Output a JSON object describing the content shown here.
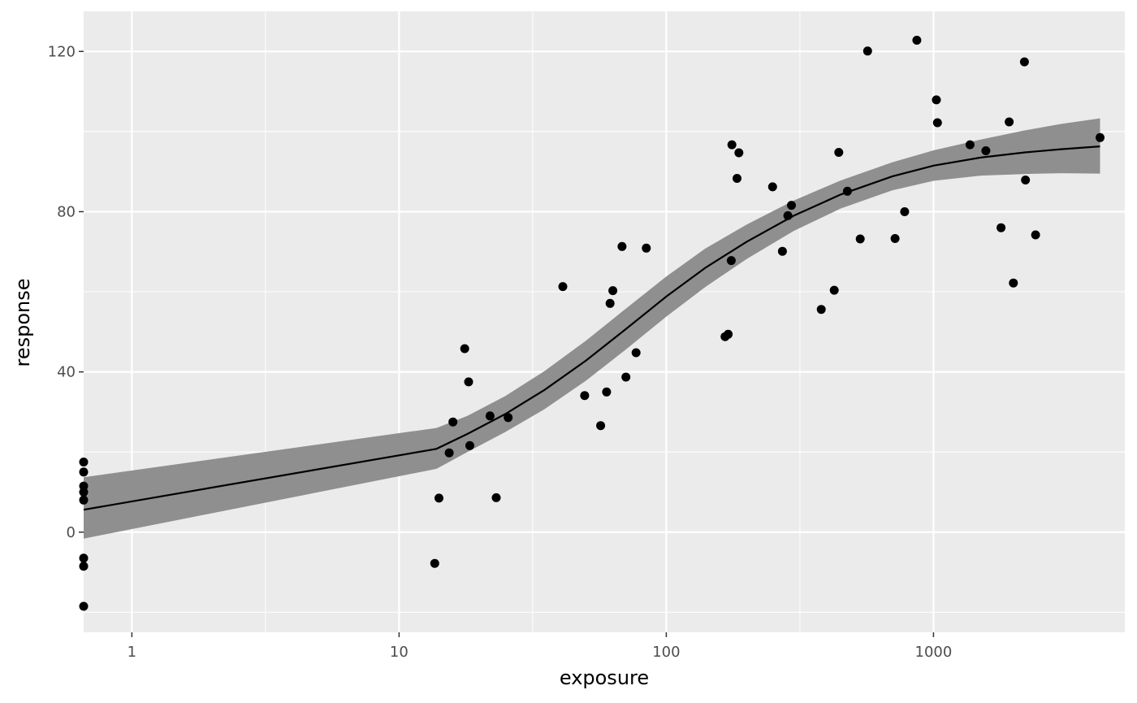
{
  "chart_data": {
    "type": "scatter",
    "title": "",
    "xlabel": "exposure",
    "ylabel": "response",
    "x_scale": "log10",
    "xlim": [
      0.66,
      5200
    ],
    "ylim": [
      -25,
      130
    ],
    "x_ticks": [
      1,
      10,
      100,
      1000
    ],
    "x_tick_labels": [
      "1",
      "10",
      "100",
      "1000"
    ],
    "y_ticks": [
      0,
      40,
      80,
      120
    ],
    "y_tick_labels": [
      "0",
      "40",
      "80",
      "120"
    ],
    "grid": true,
    "panel_background": "#ebebeb",
    "grid_color": "#ffffff",
    "point_color": "#000000",
    "ribbon_color": "#8f8f8f",
    "line_color": "#000000",
    "points": [
      {
        "x": 0.66,
        "y": 17.5
      },
      {
        "x": 0.66,
        "y": 15
      },
      {
        "x": 0.66,
        "y": 11.5
      },
      {
        "x": 0.66,
        "y": 10
      },
      {
        "x": 0.66,
        "y": 8
      },
      {
        "x": 0.66,
        "y": -6.5
      },
      {
        "x": 0.66,
        "y": -8.5
      },
      {
        "x": 0.66,
        "y": -18.5
      },
      {
        "x": 13.6,
        "y": -7.8
      },
      {
        "x": 14.1,
        "y": 8.5
      },
      {
        "x": 15.4,
        "y": 19.8
      },
      {
        "x": 15.9,
        "y": 27.5
      },
      {
        "x": 17.6,
        "y": 45.8
      },
      {
        "x": 18.2,
        "y": 37.5
      },
      {
        "x": 18.4,
        "y": 21.6
      },
      {
        "x": 21.9,
        "y": 29
      },
      {
        "x": 23.1,
        "y": 8.6
      },
      {
        "x": 25.6,
        "y": 28.6
      },
      {
        "x": 41,
        "y": 61.3
      },
      {
        "x": 49.5,
        "y": 34.1
      },
      {
        "x": 56.8,
        "y": 26.6
      },
      {
        "x": 59.8,
        "y": 35
      },
      {
        "x": 61.6,
        "y": 57.1
      },
      {
        "x": 63.1,
        "y": 60.3
      },
      {
        "x": 68.3,
        "y": 71.3
      },
      {
        "x": 70.6,
        "y": 38.7
      },
      {
        "x": 77.1,
        "y": 44.8
      },
      {
        "x": 84.2,
        "y": 70.9
      },
      {
        "x": 166,
        "y": 48.8
      },
      {
        "x": 170.5,
        "y": 49.4
      },
      {
        "x": 175,
        "y": 67.8
      },
      {
        "x": 176,
        "y": 96.7
      },
      {
        "x": 184,
        "y": 88.3
      },
      {
        "x": 187,
        "y": 94.7
      },
      {
        "x": 250,
        "y": 86.2
      },
      {
        "x": 272,
        "y": 70.1
      },
      {
        "x": 285,
        "y": 79
      },
      {
        "x": 294,
        "y": 81.6
      },
      {
        "x": 380,
        "y": 55.6
      },
      {
        "x": 425,
        "y": 60.4
      },
      {
        "x": 442,
        "y": 94.8
      },
      {
        "x": 476,
        "y": 85.1
      },
      {
        "x": 532,
        "y": 73.2
      },
      {
        "x": 567,
        "y": 120.1
      },
      {
        "x": 718,
        "y": 73.3
      },
      {
        "x": 780,
        "y": 80
      },
      {
        "x": 866,
        "y": 122.8
      },
      {
        "x": 1025,
        "y": 107.9
      },
      {
        "x": 1035,
        "y": 102.2
      },
      {
        "x": 1370,
        "y": 96.7
      },
      {
        "x": 1570,
        "y": 95.2
      },
      {
        "x": 1790,
        "y": 76
      },
      {
        "x": 1920,
        "y": 102.4
      },
      {
        "x": 1990,
        "y": 62.2
      },
      {
        "x": 2190,
        "y": 117.4
      },
      {
        "x": 2210,
        "y": 87.9
      },
      {
        "x": 2410,
        "y": 74.2
      },
      {
        "x": 4200,
        "y": 98.5
      }
    ],
    "fit_line": [
      {
        "x": 0.66,
        "y": 5.6
      },
      {
        "x": 13.8,
        "y": 20.8
      },
      {
        "x": 18,
        "y": 24.5
      },
      {
        "x": 25,
        "y": 29.5
      },
      {
        "x": 35,
        "y": 35.5
      },
      {
        "x": 50,
        "y": 42.8
      },
      {
        "x": 70,
        "y": 50.5
      },
      {
        "x": 100,
        "y": 58.8
      },
      {
        "x": 140,
        "y": 66
      },
      {
        "x": 200,
        "y": 72.5
      },
      {
        "x": 300,
        "y": 79
      },
      {
        "x": 450,
        "y": 84.3
      },
      {
        "x": 700,
        "y": 88.8
      },
      {
        "x": 1000,
        "y": 91.5
      },
      {
        "x": 1500,
        "y": 93.5
      },
      {
        "x": 2200,
        "y": 94.8
      },
      {
        "x": 3000,
        "y": 95.6
      },
      {
        "x": 4200,
        "y": 96.3
      }
    ],
    "ribbon_upper": [
      {
        "x": 0.66,
        "y": 13.7
      },
      {
        "x": 13.8,
        "y": 26
      },
      {
        "x": 18,
        "y": 29
      },
      {
        "x": 25,
        "y": 34
      },
      {
        "x": 35,
        "y": 40.2
      },
      {
        "x": 50,
        "y": 47.8
      },
      {
        "x": 70,
        "y": 55.6
      },
      {
        "x": 100,
        "y": 63.8
      },
      {
        "x": 140,
        "y": 70.8
      },
      {
        "x": 200,
        "y": 76.8
      },
      {
        "x": 300,
        "y": 82.8
      },
      {
        "x": 450,
        "y": 87.8
      },
      {
        "x": 700,
        "y": 92.3
      },
      {
        "x": 1000,
        "y": 95.3
      },
      {
        "x": 1500,
        "y": 98
      },
      {
        "x": 2200,
        "y": 100.3
      },
      {
        "x": 3000,
        "y": 101.9
      },
      {
        "x": 4200,
        "y": 103.3
      }
    ],
    "ribbon_lower": [
      {
        "x": 0.66,
        "y": -1.6
      },
      {
        "x": 13.8,
        "y": 15.8
      },
      {
        "x": 18,
        "y": 20
      },
      {
        "x": 25,
        "y": 25
      },
      {
        "x": 35,
        "y": 30.7
      },
      {
        "x": 50,
        "y": 37.8
      },
      {
        "x": 70,
        "y": 45.4
      },
      {
        "x": 100,
        "y": 53.8
      },
      {
        "x": 140,
        "y": 61.2
      },
      {
        "x": 200,
        "y": 68.2
      },
      {
        "x": 300,
        "y": 75.2
      },
      {
        "x": 450,
        "y": 80.8
      },
      {
        "x": 700,
        "y": 85.3
      },
      {
        "x": 1000,
        "y": 87.7
      },
      {
        "x": 1500,
        "y": 89
      },
      {
        "x": 2200,
        "y": 89.4
      },
      {
        "x": 3000,
        "y": 89.6
      },
      {
        "x": 4200,
        "y": 89.5
      }
    ]
  }
}
